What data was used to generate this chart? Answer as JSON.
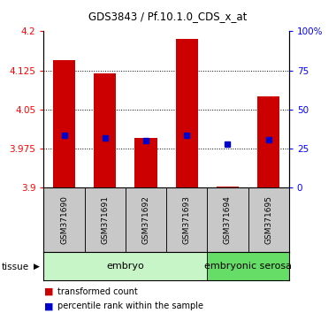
{
  "title": "GDS3843 / Pf.10.1.0_CDS_x_at",
  "samples": [
    "GSM371690",
    "GSM371691",
    "GSM371692",
    "GSM371693",
    "GSM371694",
    "GSM371695"
  ],
  "red_values": [
    4.145,
    4.12,
    3.995,
    4.185,
    3.902,
    4.075
  ],
  "blue_values": [
    4.0,
    3.995,
    3.99,
    4.0,
    3.984,
    3.992
  ],
  "red_base": 3.9,
  "ylim": [
    3.9,
    4.2
  ],
  "yticks_left": [
    3.9,
    3.975,
    4.05,
    4.125,
    4.2
  ],
  "yticks_right": [
    0,
    25,
    50,
    75,
    100
  ],
  "groups": [
    {
      "label": "embryo",
      "samples": [
        0,
        1,
        2,
        3
      ],
      "color": "#c8f5c8"
    },
    {
      "label": "embryonic serosa",
      "samples": [
        4,
        5
      ],
      "color": "#66dd66"
    }
  ],
  "bar_color": "#cc0000",
  "blue_color": "#0000cc",
  "tissue_label": "tissue",
  "legend_items": [
    {
      "color": "#cc0000",
      "label": "transformed count"
    },
    {
      "color": "#0000cc",
      "label": "percentile rank within the sample"
    }
  ],
  "bar_width": 0.55,
  "bg_color": "#ffffff",
  "label_area_color": "#c8c8c8"
}
